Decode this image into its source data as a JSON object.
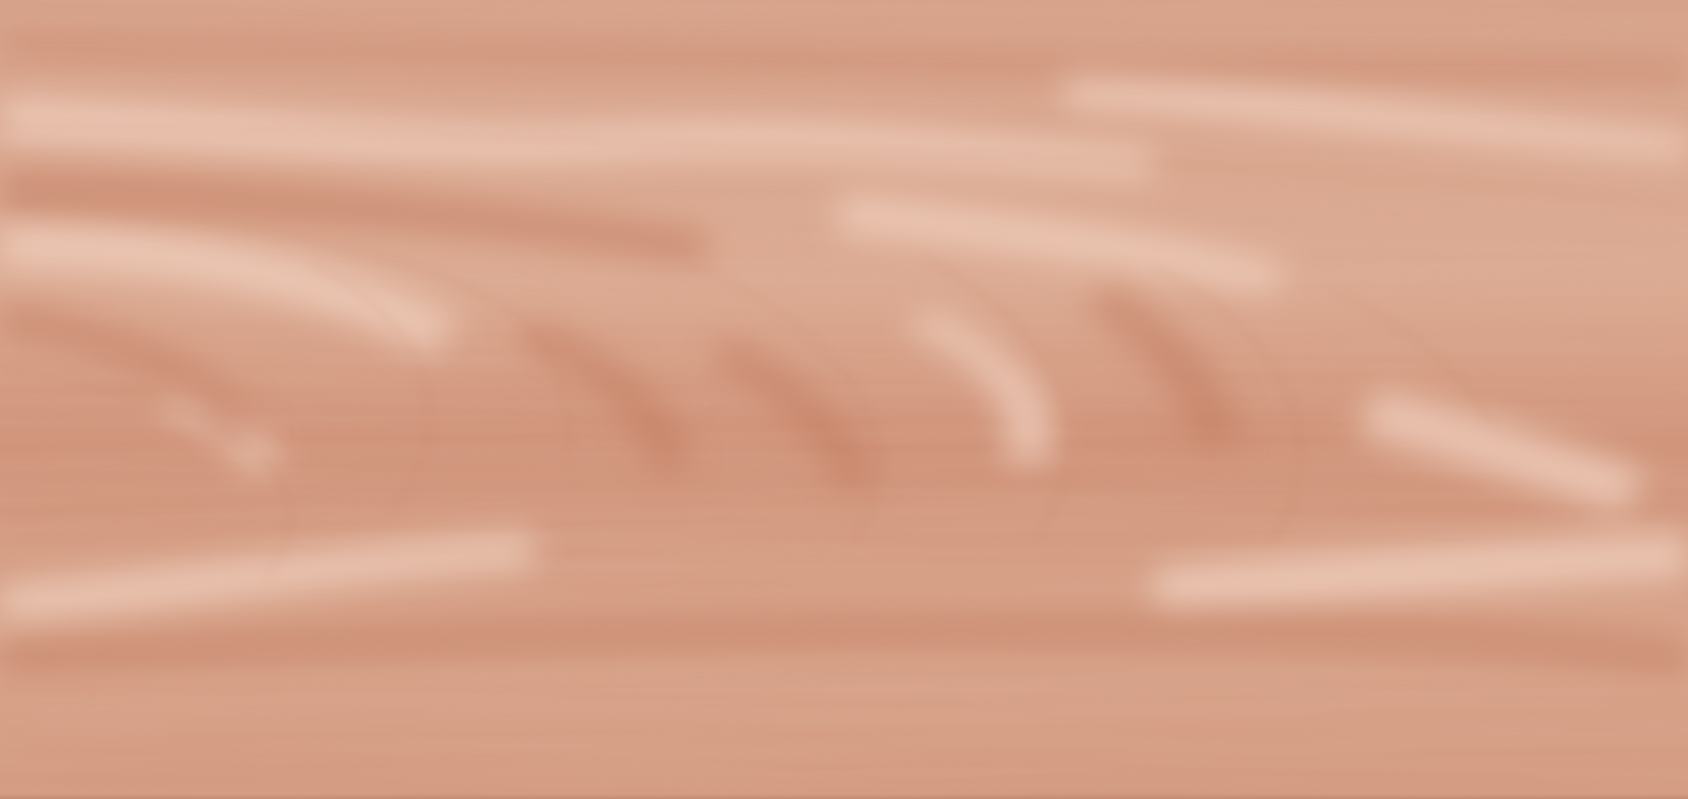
{
  "texture": {
    "kind": "wood-grain",
    "colors": {
      "base": "#d39a80",
      "light": "#ecc6b2",
      "highlight": "#f3d7c8",
      "dark": "#c88267",
      "deep": "#b87358"
    }
  }
}
